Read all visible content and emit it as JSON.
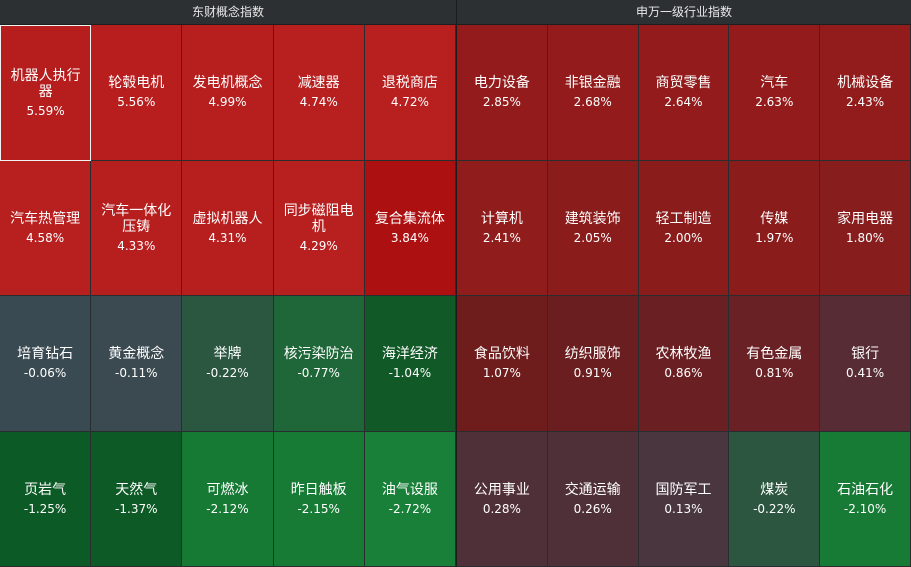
{
  "left_panel": {
    "title": "东财概念指数",
    "tiles": [
      {
        "name": "机器人执行器",
        "pct": "5.59%",
        "color": "#b61d1d",
        "selected": true
      },
      {
        "name": "轮毂电机",
        "pct": "5.56%",
        "color": "#b81e1e"
      },
      {
        "name": "发电机概念",
        "pct": "4.99%",
        "color": "#b71f1f"
      },
      {
        "name": "减速器",
        "pct": "4.74%",
        "color": "#b81f1f"
      },
      {
        "name": "退税商店",
        "pct": "4.72%",
        "color": "#b81f1f"
      },
      {
        "name": "汽车热管理",
        "pct": "4.58%",
        "color": "#b81f1f"
      },
      {
        "name": "汽车一体化压铸",
        "pct": "4.33%",
        "color": "#b71f1f"
      },
      {
        "name": "虚拟机器人",
        "pct": "4.31%",
        "color": "#b71f1f"
      },
      {
        "name": "同步磁阻电机",
        "pct": "4.29%",
        "color": "#b81f1f"
      },
      {
        "name": "复合集流体",
        "pct": "3.84%",
        "color": "#ad1010"
      },
      {
        "name": "培育钻石",
        "pct": "-0.06%",
        "color": "#3a4a52"
      },
      {
        "name": "黄金概念",
        "pct": "-0.11%",
        "color": "#3b4a50"
      },
      {
        "name": "举牌",
        "pct": "-0.22%",
        "color": "#2b5640"
      },
      {
        "name": "核污染防治",
        "pct": "-0.77%",
        "color": "#1f6638"
      },
      {
        "name": "海洋经济",
        "pct": "-1.04%",
        "color": "#115927"
      },
      {
        "name": "页岩气",
        "pct": "-1.25%",
        "color": "#0c5a25"
      },
      {
        "name": "天然气",
        "pct": "-1.37%",
        "color": "#0e5a26"
      },
      {
        "name": "可燃冰",
        "pct": "-2.12%",
        "color": "#167a35"
      },
      {
        "name": "昨日触板",
        "pct": "-2.15%",
        "color": "#177b36"
      },
      {
        "name": "油气设服",
        "pct": "-2.72%",
        "color": "#188038"
      }
    ]
  },
  "right_panel": {
    "title": "申万一级行业指数",
    "tiles": [
      {
        "name": "电力设备",
        "pct": "2.85%",
        "color": "#931b1b"
      },
      {
        "name": "非银金融",
        "pct": "2.68%",
        "color": "#931b1b"
      },
      {
        "name": "商贸零售",
        "pct": "2.64%",
        "color": "#931b1b"
      },
      {
        "name": "汽车",
        "pct": "2.63%",
        "color": "#931b1b"
      },
      {
        "name": "机械设备",
        "pct": "2.43%",
        "color": "#921c1c"
      },
      {
        "name": "计算机",
        "pct": "2.41%",
        "color": "#911c1c"
      },
      {
        "name": "建筑装饰",
        "pct": "2.05%",
        "color": "#8a1c1c"
      },
      {
        "name": "轻工制造",
        "pct": "2.00%",
        "color": "#8a1c1c"
      },
      {
        "name": "传媒",
        "pct": "1.97%",
        "color": "#8a1c1c"
      },
      {
        "name": "家用电器",
        "pct": "1.80%",
        "color": "#881d1d"
      },
      {
        "name": "食品饮料",
        "pct": "1.07%",
        "color": "#6e1c1c"
      },
      {
        "name": "纺织服饰",
        "pct": "0.91%",
        "color": "#6a1e20"
      },
      {
        "name": "农林牧渔",
        "pct": "0.86%",
        "color": "#6a2023"
      },
      {
        "name": "有色金属",
        "pct": "0.81%",
        "color": "#6a2125"
      },
      {
        "name": "银行",
        "pct": "0.41%",
        "color": "#582c35"
      },
      {
        "name": "公用事业",
        "pct": "0.28%",
        "color": "#4f2f38"
      },
      {
        "name": "交通运输",
        "pct": "0.26%",
        "color": "#4f3039"
      },
      {
        "name": "国防军工",
        "pct": "0.13%",
        "color": "#49363f"
      },
      {
        "name": "煤炭",
        "pct": "-0.22%",
        "color": "#2c5640"
      },
      {
        "name": "石油石化",
        "pct": "-2.10%",
        "color": "#177a35"
      }
    ]
  }
}
